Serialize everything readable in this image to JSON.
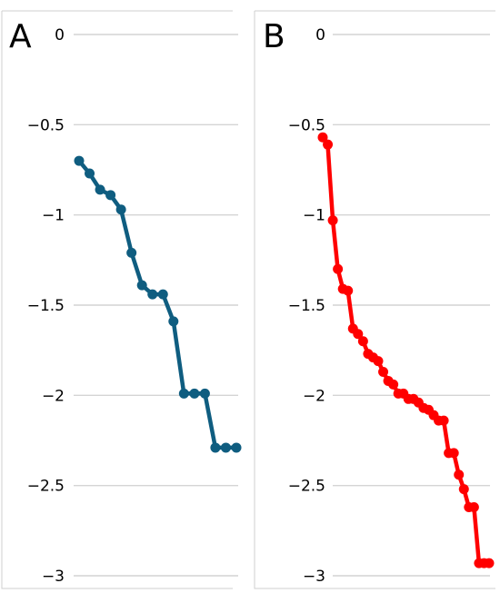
{
  "chart_data": [
    {
      "panel": "A",
      "type": "line",
      "title": "",
      "xlabel": "",
      "ylabel": "",
      "ylim": [
        -3,
        0
      ],
      "yticks": [
        0,
        -0.5,
        -1,
        -1.5,
        -2,
        -2.5,
        -3
      ],
      "ytick_labels": [
        "0",
        "−0.5",
        "−1",
        "−1.5",
        "−2",
        "−2.5",
        "−3"
      ],
      "grid": true,
      "color": "#0f5d80",
      "series": [
        {
          "values": [
            -0.7,
            -0.77,
            -0.86,
            -0.89,
            -0.97,
            -1.21,
            -1.39,
            -1.44,
            -1.44,
            -1.59,
            -1.99,
            -1.99,
            -1.99,
            -2.29,
            -2.29,
            -2.29
          ]
        }
      ]
    },
    {
      "panel": "B",
      "type": "line",
      "title": "",
      "xlabel": "",
      "ylabel": "",
      "ylim": [
        -3,
        0
      ],
      "yticks": [
        0,
        -0.5,
        -1,
        -1.5,
        -2,
        -2.5,
        -3
      ],
      "ytick_labels": [
        "0",
        "−0.5",
        "−1",
        "−1.5",
        "−2",
        "−2.5",
        "−3"
      ],
      "grid": true,
      "color": "#ff0000",
      "series": [
        {
          "values": [
            -0.57,
            -0.61,
            -1.03,
            -1.3,
            -1.41,
            -1.42,
            -1.63,
            -1.66,
            -1.7,
            -1.77,
            -1.79,
            -1.81,
            -1.87,
            -1.92,
            -1.94,
            -1.99,
            -1.99,
            -2.02,
            -2.02,
            -2.04,
            -2.07,
            -2.08,
            -2.11,
            -2.14,
            -2.14,
            -2.32,
            -2.32,
            -2.44,
            -2.52,
            -2.62,
            -2.62,
            -2.93,
            -2.93,
            -2.93
          ]
        }
      ]
    }
  ]
}
